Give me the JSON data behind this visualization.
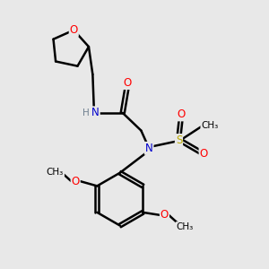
{
  "bg_color": "#e8e8e8",
  "atom_colors": {
    "C": "#000000",
    "N": "#0000cc",
    "O": "#ff0000",
    "S": "#bbaa00",
    "H": "#708090"
  },
  "bond_color": "#000000",
  "bond_width": 1.8,
  "figsize": [
    3.0,
    3.0
  ],
  "dpi": 100,
  "xlim": [
    0,
    10
  ],
  "ylim": [
    0,
    10
  ]
}
